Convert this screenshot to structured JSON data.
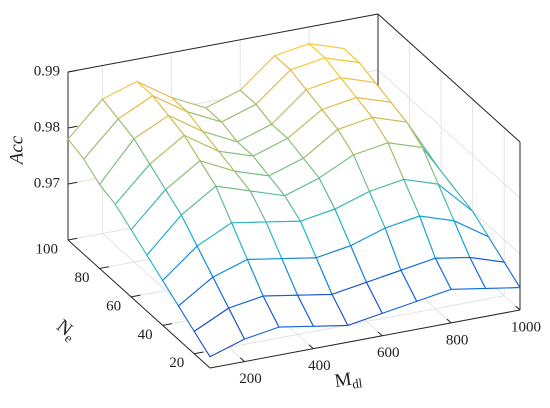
{
  "chart_data": {
    "type": "surface",
    "xlabel": {
      "text": "M",
      "sub": "dl"
    },
    "ylabel": {
      "text": "N",
      "sub": "e"
    },
    "zlabel": "Acc",
    "colormap": "parula",
    "grid": true,
    "x": [
      100,
      200,
      300,
      400,
      500,
      600,
      700,
      800,
      900,
      1000
    ],
    "y": [
      10,
      20,
      30,
      40,
      50,
      60,
      70,
      80,
      90,
      100
    ],
    "z": [
      [
        0.962,
        0.964,
        0.965,
        0.964,
        0.963,
        0.964,
        0.965,
        0.966,
        0.965,
        0.964
      ],
      [
        0.964,
        0.967,
        0.968,
        0.967,
        0.966,
        0.967,
        0.968,
        0.969,
        0.968,
        0.966
      ],
      [
        0.966,
        0.97,
        0.972,
        0.971,
        0.97,
        0.971,
        0.973,
        0.974,
        0.972,
        0.968
      ],
      [
        0.968,
        0.973,
        0.976,
        0.975,
        0.974,
        0.975,
        0.977,
        0.978,
        0.976,
        0.97
      ],
      [
        0.97,
        0.976,
        0.98,
        0.978,
        0.976,
        0.978,
        0.981,
        0.982,
        0.98,
        0.971
      ],
      [
        0.972,
        0.978,
        0.982,
        0.979,
        0.977,
        0.979,
        0.983,
        0.984,
        0.982,
        0.972
      ],
      [
        0.974,
        0.98,
        0.984,
        0.98,
        0.978,
        0.98,
        0.984,
        0.985,
        0.983,
        0.973
      ],
      [
        0.975,
        0.982,
        0.985,
        0.981,
        0.978,
        0.98,
        0.985,
        0.986,
        0.984,
        0.974
      ],
      [
        0.977,
        0.983,
        0.986,
        0.982,
        0.979,
        0.981,
        0.986,
        0.987,
        0.985,
        0.975
      ],
      [
        0.978,
        0.984,
        0.986,
        0.982,
        0.979,
        0.981,
        0.986,
        0.987,
        0.985,
        0.975
      ]
    ],
    "xlim": [
      100,
      1000
    ],
    "xticks": [
      200,
      400,
      600,
      800,
      1000
    ],
    "ylim": [
      10,
      100
    ],
    "yticks": [
      20,
      40,
      60,
      80,
      100
    ],
    "zlim": [
      0.96,
      0.99
    ],
    "zticks": [
      0.97,
      0.98,
      0.99
    ]
  }
}
